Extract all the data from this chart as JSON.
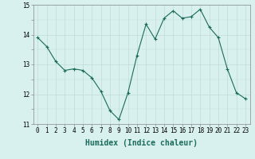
{
  "x": [
    0,
    1,
    2,
    3,
    4,
    5,
    6,
    7,
    8,
    9,
    10,
    11,
    12,
    13,
    14,
    15,
    16,
    17,
    18,
    19,
    20,
    21,
    22,
    23
  ],
  "y": [
    13.9,
    13.6,
    13.1,
    12.8,
    12.85,
    12.8,
    12.55,
    12.1,
    11.45,
    11.15,
    12.05,
    13.3,
    14.35,
    13.85,
    14.55,
    14.8,
    14.55,
    14.6,
    14.85,
    14.25,
    13.9,
    12.85,
    12.05,
    11.85
  ],
  "line_color": "#1a6b5a",
  "marker": "+",
  "bg_color": "#d8f0ee",
  "grid_color": "#c0dbd8",
  "xlabel": "Humidex (Indice chaleur)",
  "ylim": [
    11,
    15
  ],
  "xlim_min": -0.5,
  "xlim_max": 23.5,
  "yticks": [
    11,
    12,
    13,
    14,
    15
  ],
  "xticks": [
    0,
    1,
    2,
    3,
    4,
    5,
    6,
    7,
    8,
    9,
    10,
    11,
    12,
    13,
    14,
    15,
    16,
    17,
    18,
    19,
    20,
    21,
    22,
    23
  ],
  "tick_fontsize": 5.5,
  "label_fontsize": 7.0
}
